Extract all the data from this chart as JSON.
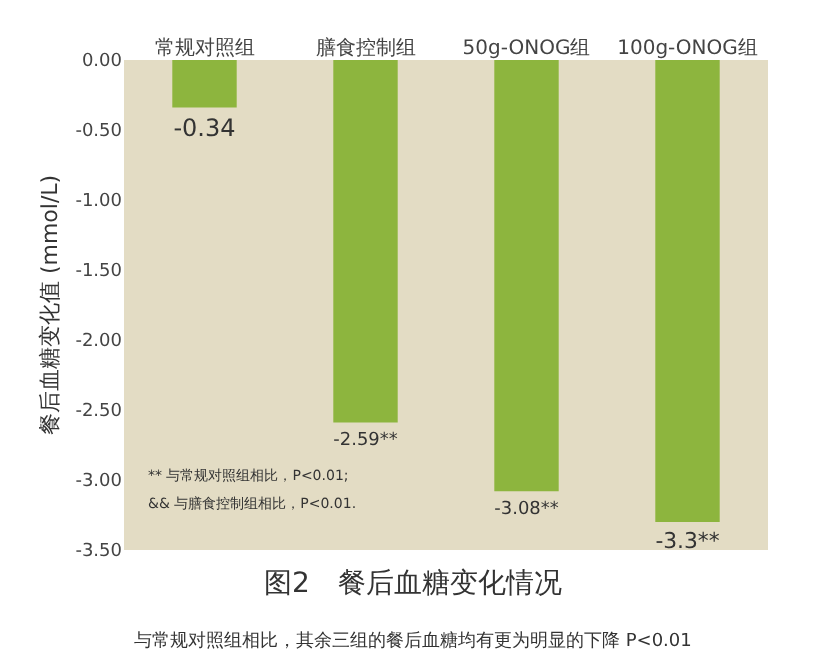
{
  "chart_data": {
    "type": "bar",
    "title": "图2　餐后血糖变化情况",
    "ylabel": "餐后血糖变化值 (mmol/L)",
    "categories": [
      "常规对照组",
      "膳食控制组",
      "50g-ONOG组",
      "100g-ONOG组"
    ],
    "values": [
      -0.34,
      -2.59,
      -3.08,
      -3.3
    ],
    "value_labels": [
      "-0.34",
      "-2.59**",
      "-3.08**",
      "-3.3**"
    ],
    "color": "#8db53e",
    "ylim": [
      -3.5,
      0
    ],
    "yticks": [
      {
        "value": 0,
        "label": "0.00"
      },
      {
        "value": -0.5,
        "label": "-0.50"
      },
      {
        "value": -1,
        "label": "-1.00"
      },
      {
        "value": -1.5,
        "label": "-1.50"
      },
      {
        "value": -2,
        "label": "-2.00"
      },
      {
        "value": -2.5,
        "label": "-2.50"
      },
      {
        "value": -3,
        "label": "-3.00"
      },
      {
        "value": -3.5,
        "label": "-3.50"
      }
    ],
    "grid": false,
    "legend": false,
    "annotations": [
      "** 与常规对照组相比，P<0.01;",
      "&& 与膳食控制组相比，P<0.01.",
      "与常规对照组相比，其余三组的餐后血糖均有更为明显的下降 P<0.01"
    ]
  }
}
